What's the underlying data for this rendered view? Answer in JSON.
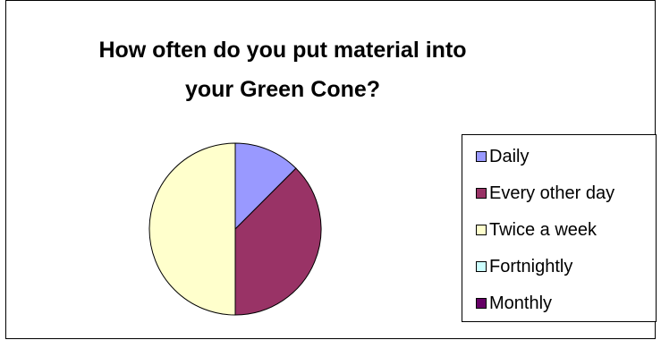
{
  "chart_data": {
    "type": "pie",
    "title": "How often do you put material into your Green Cone?",
    "title_lines": [
      "How often do you put material into",
      "your Green Cone?"
    ],
    "categories": [
      "Daily",
      "Every other day",
      "Twice a week",
      "Fortnightly",
      "Monthly"
    ],
    "values": [
      12.5,
      37.5,
      50,
      0,
      0
    ],
    "colors": [
      "#9999ff",
      "#993366",
      "#ffffcc",
      "#ccffff",
      "#660066"
    ],
    "legend_position": "right",
    "start_angle_deg": 0
  }
}
